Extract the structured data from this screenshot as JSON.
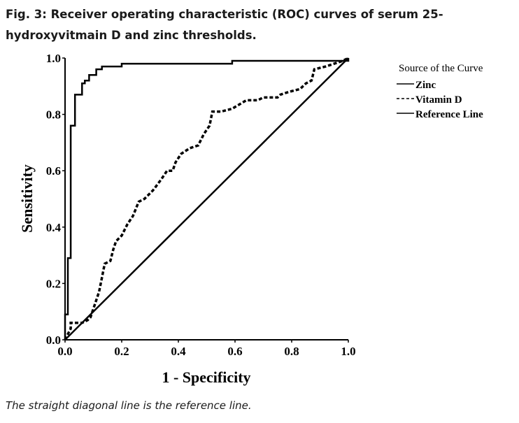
{
  "figure": {
    "title": "Fig. 3: Receiver operating characteristic (ROC) curves of serum 25-hydroxyvitmain D and zinc thresholds.",
    "caption": "The straight diagonal line is the reference line."
  },
  "chart_data": {
    "type": "line",
    "title": "",
    "xlabel": "1 - Specificity",
    "ylabel": "Sensitivity",
    "xlim": [
      0,
      1
    ],
    "ylim": [
      0,
      1
    ],
    "x_ticks": [
      "0.0",
      "0.2",
      "0.4",
      "0.6",
      "0.8",
      "1.0"
    ],
    "y_ticks": [
      "0.0",
      "0.2",
      "0.4",
      "0.6",
      "0.8",
      "1.0"
    ],
    "grid": false,
    "legend": {
      "title": "Source of the Curve",
      "placement": "right"
    },
    "series": [
      {
        "name": "Zinc",
        "line_style": "solid",
        "color": "#000000",
        "points": [
          [
            0,
            0
          ],
          [
            0,
            0.09
          ],
          [
            0.01,
            0.09
          ],
          [
            0.01,
            0.29
          ],
          [
            0.02,
            0.29
          ],
          [
            0.02,
            0.76
          ],
          [
            0.035,
            0.76
          ],
          [
            0.035,
            0.87
          ],
          [
            0.06,
            0.87
          ],
          [
            0.06,
            0.91
          ],
          [
            0.07,
            0.91
          ],
          [
            0.07,
            0.92
          ],
          [
            0.085,
            0.92
          ],
          [
            0.085,
            0.94
          ],
          [
            0.11,
            0.94
          ],
          [
            0.11,
            0.96
          ],
          [
            0.13,
            0.96
          ],
          [
            0.13,
            0.97
          ],
          [
            0.2,
            0.97
          ],
          [
            0.2,
            0.98
          ],
          [
            0.59,
            0.98
          ],
          [
            0.59,
            0.99
          ],
          [
            1,
            0.99
          ],
          [
            1,
            1
          ]
        ]
      },
      {
        "name": "Vitamin D",
        "line_style": "dashed",
        "color": "#000000",
        "points": [
          [
            0,
            0
          ],
          [
            0.01,
            0.02
          ],
          [
            0.02,
            0.04
          ],
          [
            0.02,
            0.06
          ],
          [
            0.06,
            0.06
          ],
          [
            0.08,
            0.07
          ],
          [
            0.09,
            0.08
          ],
          [
            0.1,
            0.11
          ],
          [
            0.12,
            0.17
          ],
          [
            0.13,
            0.22
          ],
          [
            0.14,
            0.27
          ],
          [
            0.16,
            0.28
          ],
          [
            0.17,
            0.32
          ],
          [
            0.18,
            0.35
          ],
          [
            0.2,
            0.37
          ],
          [
            0.22,
            0.41
          ],
          [
            0.24,
            0.44
          ],
          [
            0.26,
            0.49
          ],
          [
            0.28,
            0.5
          ],
          [
            0.31,
            0.53
          ],
          [
            0.34,
            0.57
          ],
          [
            0.36,
            0.6
          ],
          [
            0.38,
            0.6
          ],
          [
            0.39,
            0.63
          ],
          [
            0.41,
            0.66
          ],
          [
            0.44,
            0.68
          ],
          [
            0.47,
            0.69
          ],
          [
            0.49,
            0.73
          ],
          [
            0.51,
            0.76
          ],
          [
            0.52,
            0.81
          ],
          [
            0.55,
            0.81
          ],
          [
            0.59,
            0.82
          ],
          [
            0.64,
            0.85
          ],
          [
            0.68,
            0.85
          ],
          [
            0.7,
            0.86
          ],
          [
            0.75,
            0.86
          ],
          [
            0.76,
            0.87
          ],
          [
            0.79,
            0.88
          ],
          [
            0.83,
            0.89
          ],
          [
            0.85,
            0.91
          ],
          [
            0.87,
            0.92
          ],
          [
            0.88,
            0.96
          ],
          [
            0.92,
            0.97
          ],
          [
            0.95,
            0.98
          ],
          [
            0.98,
            0.99
          ],
          [
            1,
            1
          ]
        ]
      },
      {
        "name": "Reference Line",
        "line_style": "solid",
        "color": "#000000",
        "points": [
          [
            0,
            0
          ],
          [
            1,
            1
          ]
        ]
      }
    ]
  }
}
